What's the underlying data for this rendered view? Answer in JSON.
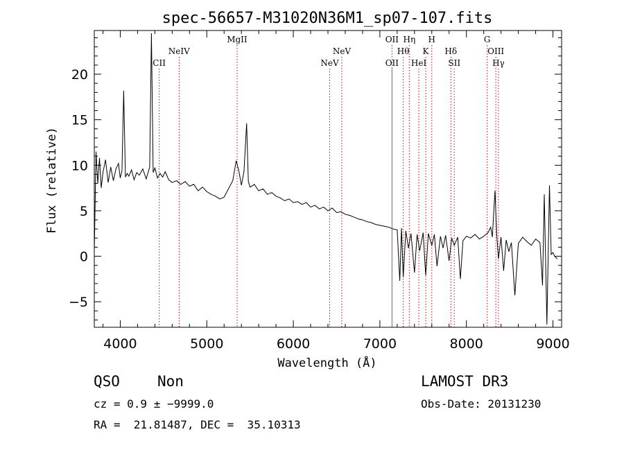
{
  "chart_data": {
    "type": "line",
    "title": "spec-56657-M31020N36M1_sp07-107.fits",
    "xlabel": "Wavelength (Å)",
    "ylabel": "Flux (relative)",
    "xlim": [
      3700,
      9100
    ],
    "ylim": [
      -7.8,
      24.8
    ],
    "xticks": [
      4000,
      5000,
      6000,
      7000,
      8000,
      9000
    ],
    "yticks": [
      -5,
      0,
      5,
      10,
      15,
      20
    ],
    "series": [
      {
        "name": "spectrum",
        "x": [
          3700,
          3720,
          3740,
          3760,
          3780,
          3800,
          3830,
          3860,
          3890,
          3920,
          3950,
          3980,
          4000,
          4020,
          4040,
          4060,
          4080,
          4100,
          4130,
          4160,
          4190,
          4220,
          4260,
          4300,
          4340,
          4360,
          4380,
          4400,
          4430,
          4460,
          4490,
          4520,
          4560,
          4600,
          4650,
          4700,
          4750,
          4800,
          4850,
          4900,
          4950,
          5000,
          5050,
          5100,
          5150,
          5200,
          5250,
          5300,
          5340,
          5370,
          5400,
          5430,
          5460,
          5480,
          5500,
          5550,
          5600,
          5650,
          5700,
          5750,
          5800,
          5850,
          5900,
          5950,
          6000,
          6050,
          6100,
          6150,
          6200,
          6250,
          6300,
          6350,
          6400,
          6450,
          6500,
          6550,
          6600,
          6650,
          6700,
          6750,
          6800,
          6850,
          6900,
          6950,
          7000,
          7050,
          7100,
          7150,
          7200,
          7230,
          7250,
          7270,
          7300,
          7330,
          7360,
          7400,
          7430,
          7460,
          7500,
          7530,
          7560,
          7600,
          7630,
          7660,
          7700,
          7730,
          7760,
          7800,
          7830,
          7860,
          7900,
          7930,
          7960,
          8000,
          8050,
          8100,
          8150,
          8200,
          8250,
          8280,
          8300,
          8330,
          8350,
          8370,
          8400,
          8430,
          8460,
          8490,
          8520,
          8560,
          8600,
          8650,
          8700,
          8750,
          8800,
          8850,
          8880,
          8900,
          8930,
          8960,
          8980,
          9000,
          9020,
          9050
        ],
        "y": [
          0.5,
          11.5,
          8,
          10.8,
          7.5,
          9.2,
          10.6,
          8.1,
          9.8,
          8.3,
          9.6,
          10.2,
          8.6,
          9.4,
          18.2,
          8.7,
          9.1,
          8.8,
          9.5,
          8.4,
          9.2,
          8.9,
          9.6,
          8.5,
          9.8,
          24.5,
          9.2,
          9.7,
          8.6,
          9.1,
          8.7,
          9.3,
          8.4,
          8.1,
          8.3,
          7.9,
          8.2,
          7.7,
          7.9,
          7.2,
          7.6,
          7.1,
          6.8,
          6.6,
          6.3,
          6.5,
          7.4,
          8.3,
          10.5,
          9.4,
          7.8,
          9.3,
          14.6,
          8.2,
          7.6,
          7.9,
          7.2,
          7.4,
          6.8,
          7,
          6.6,
          6.4,
          6.1,
          6.3,
          5.9,
          6,
          5.7,
          5.9,
          5.4,
          5.6,
          5.2,
          5.4,
          5,
          5.3,
          4.8,
          4.9,
          4.6,
          4.5,
          4.3,
          4.1,
          4,
          3.8,
          3.7,
          3.5,
          3.4,
          3.3,
          3.2,
          3,
          2.9,
          -2.7,
          3.1,
          -2.3,
          2.8,
          0.9,
          2.5,
          -1.8,
          2.4,
          0.6,
          2.6,
          -2.1,
          2.5,
          1.2,
          2.4,
          -1.1,
          2.2,
          0.9,
          2.3,
          -0.5,
          2,
          1.2,
          2.1,
          -2.5,
          1.7,
          2.2,
          2,
          2.4,
          1.9,
          2.2,
          2.6,
          3.2,
          2.1,
          7.2,
          2.5,
          -0.3,
          2.1,
          -1.6,
          1.8,
          0.5,
          1.5,
          -4.3,
          1.4,
          2.1,
          1.6,
          1.2,
          1.9,
          1.5,
          -3.2,
          6.8,
          -7.5,
          7.8,
          0.2,
          0.4,
          0,
          -0.3
        ]
      }
    ],
    "emission_lines": [
      {
        "label": "CII",
        "x": 4450,
        "row": 3
      },
      {
        "label": "NeIV",
        "x": 4680,
        "row": 2
      },
      {
        "label": "MgII",
        "x": 5350,
        "row": 1
      },
      {
        "label": "NeV",
        "x": 6420,
        "row": 3
      },
      {
        "label": "NeV",
        "x": 6560,
        "row": 2
      },
      {
        "label": "OII",
        "x": 7140,
        "row": 1
      },
      {
        "label": "OII",
        "x": 7140,
        "row": 3
      },
      {
        "label": "Hθ",
        "x": 7270,
        "row": 2
      },
      {
        "label": "Hη",
        "x": 7340,
        "row": 1
      },
      {
        "label": "HeI",
        "x": 7450,
        "row": 3
      },
      {
        "label": "K",
        "x": 7530,
        "row": 2
      },
      {
        "label": "H",
        "x": 7600,
        "row": 1
      },
      {
        "label": "Hδ",
        "x": 7820,
        "row": 2
      },
      {
        "label": "SII",
        "x": 7860,
        "row": 3
      },
      {
        "label": "G",
        "x": 8240,
        "row": 1
      },
      {
        "label": "OIII",
        "x": 8340,
        "row": 2
      },
      {
        "label": "Hγ",
        "x": 8370,
        "row": 3
      }
    ],
    "colors": {
      "spectrum": "#000000",
      "line_marker": "#cc0000",
      "axes": "#000000"
    }
  },
  "info": {
    "class": "QSO",
    "subclass": "Non",
    "survey": "LAMOST DR3",
    "cz": "cz = 0.9 ± −9999.0",
    "obs_date": "Obs-Date: 20131230",
    "coords": "RA =  21.81487, DEC =  35.10313"
  }
}
